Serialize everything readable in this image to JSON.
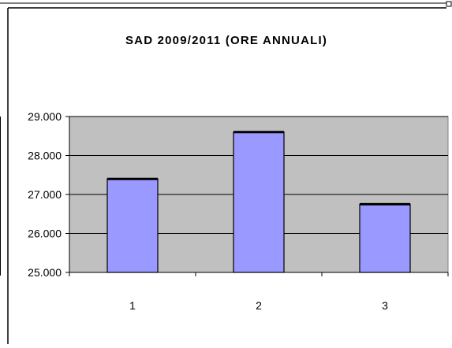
{
  "chart_data": {
    "type": "bar",
    "title": "SAD 2009/2011 (ORE ANNUALI)",
    "categories": [
      "1",
      "2",
      "3"
    ],
    "values": [
      27400,
      28600,
      26750
    ],
    "ylim": [
      25000,
      29000
    ],
    "yticks": [
      "25.000",
      "26.000",
      "27.000",
      "28.000",
      "29.000"
    ],
    "ytick_values": [
      25000,
      26000,
      27000,
      28000,
      29000
    ],
    "grid": true,
    "colors": {
      "bar_fill": "#9999FF",
      "bar_stroke": "#000000",
      "plot_background": "#C0C0C0",
      "gridline": "#000000"
    }
  }
}
